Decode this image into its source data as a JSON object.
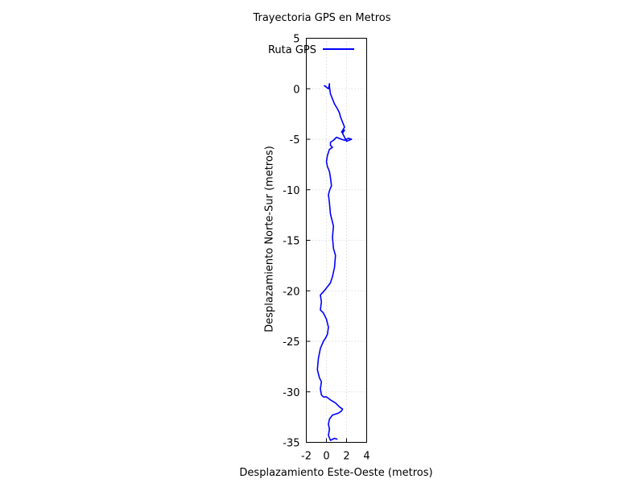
{
  "chart_data": {
    "type": "line",
    "title": "Trayectoria GPS en Metros",
    "xlabel": "Desplazamiento Este-Oeste (metros)",
    "ylabel": "Desplazamiento Norte-Sur (metros)",
    "xlim": [
      -2,
      4
    ],
    "ylim": [
      -35,
      5
    ],
    "xticks": [
      "-2",
      "0",
      "2",
      "4"
    ],
    "yticks": [
      "5",
      "0",
      "-5",
      "-10",
      "-15",
      "-20",
      "-25",
      "-30",
      "-35"
    ],
    "grid": true,
    "legend": {
      "position": "top-left"
    },
    "colors": {
      "series": "#0000ff",
      "grid": "#cccccc",
      "axis": "#000000"
    },
    "series": [
      {
        "name": "Ruta GPS",
        "x": [
          1.1,
          0.8,
          0.6,
          0.4,
          0.2,
          0.3,
          0.2,
          0.3,
          0.6,
          0.9,
          1.2,
          1.5,
          1.6,
          1.3,
          0.9,
          0.4,
          0.0,
          -0.3,
          -0.5,
          -0.6,
          -0.5,
          -0.7,
          -0.9,
          -0.8,
          -0.6,
          -0.3,
          -0.1,
          0.1,
          0.2,
          0.0,
          -0.3,
          -0.6,
          -0.5,
          -0.6,
          -0.3,
          0.1,
          0.4,
          0.6,
          0.8,
          0.9,
          0.7,
          0.6,
          0.7,
          0.4,
          0.3,
          0.2,
          0.3,
          0.5,
          0.4,
          0.3,
          0.1,
          0.0,
          0.1,
          0.3,
          0.6,
          0.4,
          0.4,
          0.7,
          0.8,
          1.0,
          1.5,
          1.8,
          2.2,
          2.5,
          2.0,
          1.6,
          1.8,
          1.5,
          1.8,
          1.6,
          1.4,
          1.3,
          1.1,
          0.8,
          0.6,
          0.4,
          0.3,
          0.3,
          0.2,
          -0.2,
          0.0
        ],
        "y": [
          -34.7,
          -34.6,
          -34.7,
          -34.8,
          -34.3,
          -33.7,
          -33.2,
          -32.7,
          -32.3,
          -32.2,
          -32.1,
          -31.9,
          -31.7,
          -31.5,
          -31.1,
          -30.8,
          -30.5,
          -30.5,
          -30.3,
          -29.7,
          -29.0,
          -28.6,
          -27.8,
          -26.7,
          -25.7,
          -25.0,
          -24.7,
          -24.3,
          -23.6,
          -22.8,
          -22.2,
          -21.9,
          -21.1,
          -20.4,
          -20.1,
          -19.6,
          -19.2,
          -18.6,
          -17.7,
          -16.5,
          -15.8,
          -14.7,
          -13.6,
          -12.4,
          -11.3,
          -10.5,
          -10.1,
          -9.6,
          -8.8,
          -8.2,
          -7.7,
          -7.2,
          -6.6,
          -6.0,
          -5.8,
          -5.6,
          -5.3,
          -5.1,
          -5.0,
          -4.8,
          -5.0,
          -5.1,
          -4.9,
          -5.0,
          -5.2,
          -4.4,
          -4.1,
          -4.3,
          -3.8,
          -3.3,
          -2.8,
          -2.4,
          -2.0,
          -1.5,
          -1.0,
          -0.5,
          0.2,
          0.5,
          0.0,
          0.3,
          0.2
        ]
      }
    ]
  }
}
